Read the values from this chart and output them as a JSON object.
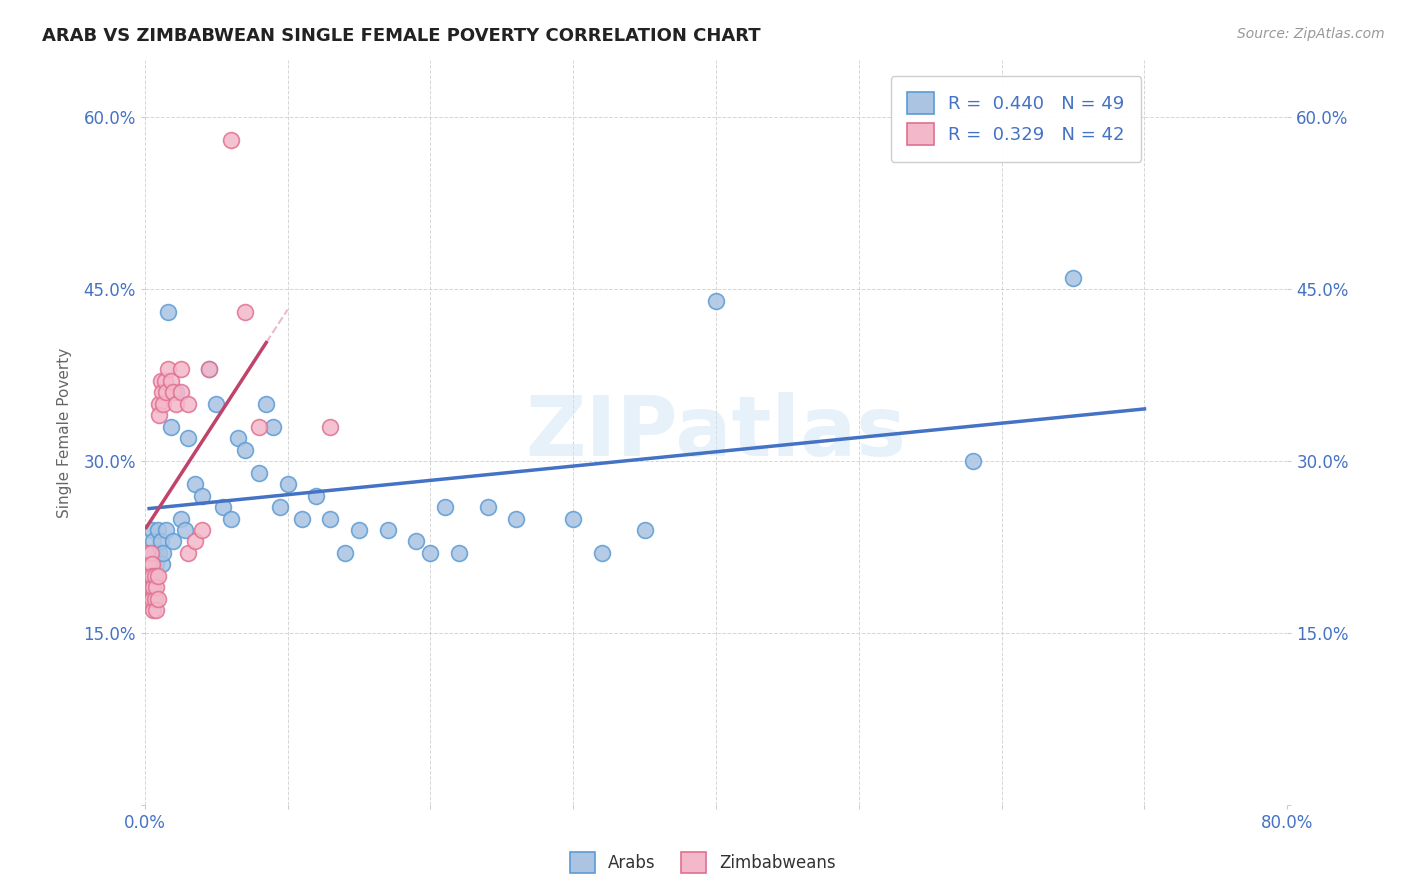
{
  "title": "ARAB VS ZIMBABWEAN SINGLE FEMALE POVERTY CORRELATION CHART",
  "source": "Source: ZipAtlas.com",
  "ylabel": "Single Female Poverty",
  "xlim": [
    0.0,
    0.8
  ],
  "ylim": [
    0.0,
    0.65
  ],
  "xticks": [
    0.0,
    0.1,
    0.2,
    0.3,
    0.4,
    0.5,
    0.6,
    0.7,
    0.8
  ],
  "yticks": [
    0.0,
    0.15,
    0.3,
    0.45,
    0.6
  ],
  "arab_R": 0.44,
  "arab_N": 49,
  "zimb_R": 0.329,
  "zimb_N": 42,
  "arab_color": "#aac4e2",
  "arab_edge_color": "#5b9bd5",
  "arab_line_color": "#4472c4",
  "zimb_color": "#f4b8cb",
  "zimb_edge_color": "#e07090",
  "zimb_line_color": "#c0446a",
  "watermark": "ZIPatlas",
  "legend_arab_label": "Arabs",
  "legend_zimb_label": "Zimbabweans",
  "arab_x": [
    0.003,
    0.005,
    0.006,
    0.007,
    0.008,
    0.009,
    0.01,
    0.011,
    0.012,
    0.013,
    0.015,
    0.016,
    0.018,
    0.02,
    0.022,
    0.025,
    0.028,
    0.03,
    0.035,
    0.04,
    0.045,
    0.05,
    0.055,
    0.06,
    0.065,
    0.07,
    0.08,
    0.085,
    0.09,
    0.095,
    0.1,
    0.11,
    0.12,
    0.13,
    0.14,
    0.15,
    0.17,
    0.19,
    0.2,
    0.21,
    0.22,
    0.24,
    0.26,
    0.3,
    0.32,
    0.35,
    0.4,
    0.58,
    0.65
  ],
  "arab_y": [
    0.22,
    0.24,
    0.23,
    0.22,
    0.21,
    0.24,
    0.22,
    0.23,
    0.21,
    0.22,
    0.24,
    0.43,
    0.33,
    0.23,
    0.36,
    0.25,
    0.24,
    0.32,
    0.28,
    0.27,
    0.38,
    0.35,
    0.26,
    0.25,
    0.32,
    0.31,
    0.29,
    0.35,
    0.33,
    0.26,
    0.28,
    0.25,
    0.27,
    0.25,
    0.22,
    0.24,
    0.24,
    0.23,
    0.22,
    0.26,
    0.22,
    0.26,
    0.25,
    0.25,
    0.22,
    0.24,
    0.44,
    0.3,
    0.46
  ],
  "zimb_x": [
    0.001,
    0.001,
    0.002,
    0.002,
    0.003,
    0.003,
    0.003,
    0.004,
    0.004,
    0.005,
    0.005,
    0.005,
    0.006,
    0.006,
    0.007,
    0.007,
    0.008,
    0.008,
    0.009,
    0.009,
    0.01,
    0.01,
    0.011,
    0.012,
    0.013,
    0.014,
    0.015,
    0.016,
    0.018,
    0.02,
    0.022,
    0.025,
    0.025,
    0.03,
    0.03,
    0.035,
    0.04,
    0.045,
    0.06,
    0.07,
    0.08,
    0.13
  ],
  "zimb_y": [
    0.22,
    0.2,
    0.18,
    0.21,
    0.19,
    0.21,
    0.2,
    0.22,
    0.19,
    0.21,
    0.2,
    0.18,
    0.19,
    0.17,
    0.2,
    0.18,
    0.19,
    0.17,
    0.2,
    0.18,
    0.35,
    0.34,
    0.37,
    0.36,
    0.35,
    0.37,
    0.36,
    0.38,
    0.37,
    0.36,
    0.35,
    0.36,
    0.38,
    0.35,
    0.22,
    0.23,
    0.24,
    0.38,
    0.58,
    0.43,
    0.33,
    0.33
  ],
  "zimb_trend_x0": 0.001,
  "zimb_trend_x1": 0.085,
  "arab_trend_x0": 0.003,
  "arab_trend_x1": 0.7
}
